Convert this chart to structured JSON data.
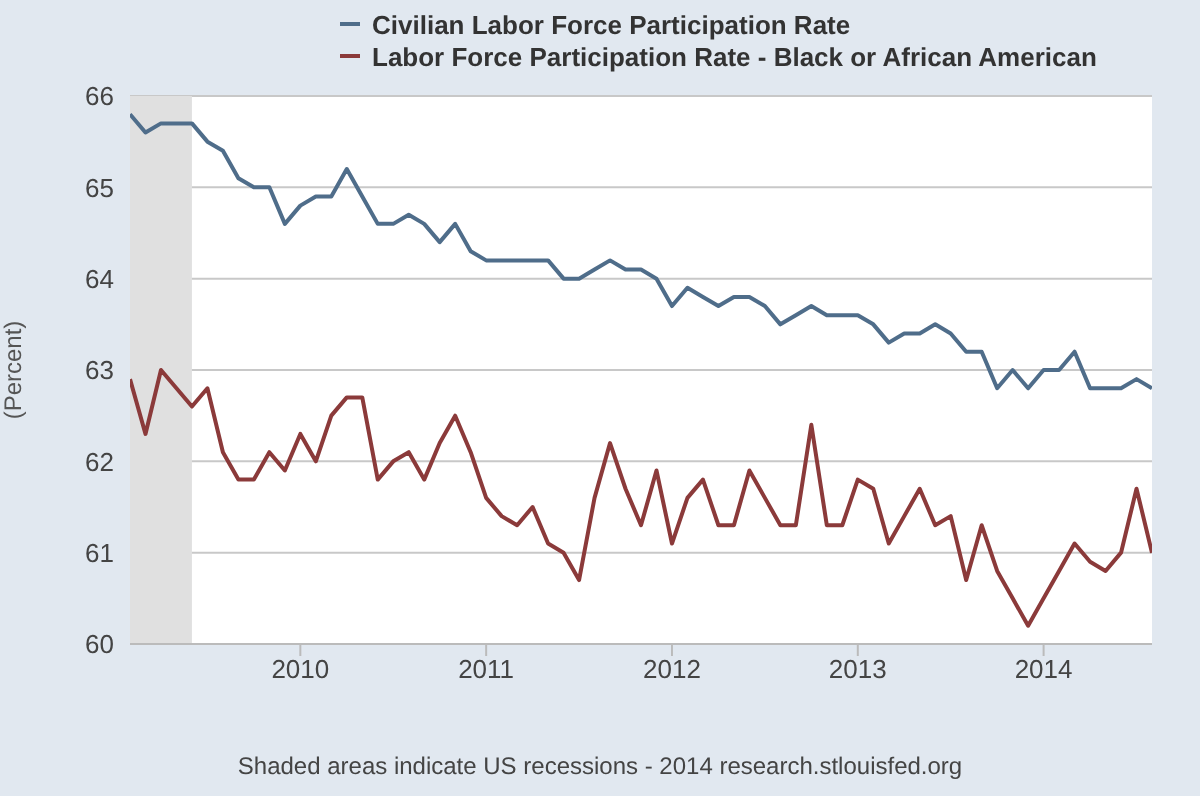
{
  "chart_data": {
    "type": "line",
    "x": [
      "2009-02",
      "2009-03",
      "2009-04",
      "2009-05",
      "2009-06",
      "2009-07",
      "2009-08",
      "2009-09",
      "2009-10",
      "2009-11",
      "2009-12",
      "2010-01",
      "2010-02",
      "2010-03",
      "2010-04",
      "2010-05",
      "2010-06",
      "2010-07",
      "2010-08",
      "2010-09",
      "2010-10",
      "2010-11",
      "2010-12",
      "2011-01",
      "2011-02",
      "2011-03",
      "2011-04",
      "2011-05",
      "2011-06",
      "2011-07",
      "2011-08",
      "2011-09",
      "2011-10",
      "2011-11",
      "2011-12",
      "2012-01",
      "2012-02",
      "2012-03",
      "2012-04",
      "2012-05",
      "2012-06",
      "2012-07",
      "2012-08",
      "2012-09",
      "2012-10",
      "2012-11",
      "2012-12",
      "2013-01",
      "2013-02",
      "2013-03",
      "2013-04",
      "2013-05",
      "2013-06",
      "2013-07",
      "2013-08",
      "2013-09",
      "2013-10",
      "2013-11",
      "2013-12",
      "2014-01",
      "2014-02",
      "2014-03",
      "2014-04",
      "2014-05",
      "2014-06",
      "2014-07",
      "2014-08"
    ],
    "series": [
      {
        "name": "Civilian Labor Force Participation Rate",
        "color": "#4f6d8a",
        "values": [
          65.8,
          65.6,
          65.7,
          65.7,
          65.7,
          65.5,
          65.4,
          65.1,
          65.0,
          65.0,
          64.6,
          64.8,
          64.9,
          64.9,
          65.2,
          64.9,
          64.6,
          64.6,
          64.7,
          64.6,
          64.4,
          64.6,
          64.3,
          64.2,
          64.2,
          64.2,
          64.2,
          64.2,
          64.0,
          64.0,
          64.1,
          64.2,
          64.1,
          64.1,
          64.0,
          63.7,
          63.9,
          63.8,
          63.7,
          63.8,
          63.8,
          63.7,
          63.5,
          63.6,
          63.7,
          63.6,
          63.6,
          63.6,
          63.5,
          63.3,
          63.4,
          63.4,
          63.5,
          63.4,
          63.2,
          63.2,
          62.8,
          63.0,
          62.8,
          63.0,
          63.0,
          63.2,
          62.8,
          62.8,
          62.8,
          62.9,
          62.8
        ]
      },
      {
        "name": "Labor Force Participation Rate - Black or African American",
        "color": "#8b3a3a",
        "values": [
          62.9,
          62.3,
          63.0,
          62.8,
          62.6,
          62.8,
          62.1,
          61.8,
          61.8,
          62.1,
          61.9,
          62.3,
          62.0,
          62.5,
          62.7,
          62.7,
          61.8,
          62.0,
          62.1,
          61.8,
          62.2,
          62.5,
          62.1,
          61.6,
          61.4,
          61.3,
          61.5,
          61.1,
          61.0,
          60.7,
          61.6,
          62.2,
          61.7,
          61.3,
          61.9,
          61.1,
          61.6,
          61.8,
          61.3,
          61.3,
          61.9,
          61.6,
          61.3,
          61.3,
          62.4,
          61.3,
          61.3,
          61.8,
          61.7,
          61.1,
          61.4,
          61.7,
          61.3,
          61.4,
          60.7,
          61.3,
          60.8,
          60.5,
          60.2,
          60.5,
          60.8,
          61.1,
          60.9,
          60.8,
          61.0,
          61.7,
          61.0
        ]
      }
    ],
    "ylabel": "(Percent)",
    "xlim": [
      "2009-02",
      "2014-08"
    ],
    "xticks": [
      "2010",
      "2011",
      "2012",
      "2013",
      "2014"
    ],
    "ylim": [
      60,
      66
    ],
    "yticks": [
      60,
      61,
      62,
      63,
      64,
      65,
      66
    ],
    "grid": "y",
    "legend": "top",
    "marker": "none",
    "line_style": "solid",
    "bands": [
      {
        "axis": "x",
        "from": "2009-02",
        "to": "2009-06",
        "color": "#e0e0e0"
      }
    ],
    "annotations": [
      "Shaded areas indicate US recessions - 2014 research.stlouisfed.org"
    ]
  }
}
